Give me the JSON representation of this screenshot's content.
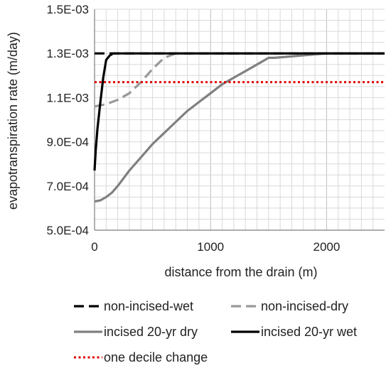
{
  "chart_data": {
    "type": "line",
    "title": "",
    "xlabel": "distance from the drain (m)",
    "ylabel": "evapotranspiration rate (m/day)",
    "xlim": [
      0,
      2500
    ],
    "ylim": [
      0.0005,
      0.0015
    ],
    "x_ticks": [
      0,
      1000,
      2000
    ],
    "x_tick_labels": [
      "0",
      "1000",
      "2000"
    ],
    "y_ticks": [
      0.0005,
      0.0007,
      0.0009,
      0.0011,
      0.0013,
      0.0015
    ],
    "y_tick_labels": [
      "5.0E-04",
      "7.0E-04",
      "9.0E-04",
      "1.1E-03",
      "1.3E-03",
      "1.5E-03"
    ],
    "grid": true,
    "legend_position": "bottom",
    "series": [
      {
        "name": "non-incised-wet",
        "color": "#000000",
        "style": "dashed",
        "x": [
          0,
          2500
        ],
        "y": [
          0.0013,
          0.0013
        ]
      },
      {
        "name": "non-incised-dry",
        "color": "#999999",
        "style": "dashed",
        "x": [
          0,
          100,
          200,
          300,
          400,
          500,
          600,
          700,
          800,
          1000,
          1500,
          2000,
          2500
        ],
        "y": [
          0.00106,
          0.00107,
          0.00109,
          0.00112,
          0.00117,
          0.00123,
          0.00128,
          0.0013,
          0.0013,
          0.0013,
          0.0013,
          0.0013,
          0.0013
        ]
      },
      {
        "name": "incised 20-yr dry",
        "color": "#808080",
        "style": "solid",
        "x": [
          0,
          50,
          100,
          150,
          200,
          300,
          400,
          500,
          600,
          700,
          800,
          900,
          1000,
          1100,
          1200,
          1300,
          1400,
          1500,
          1550,
          2000,
          2500
        ],
        "y": [
          0.00063,
          0.000635,
          0.00065,
          0.00067,
          0.0007,
          0.00077,
          0.00083,
          0.00089,
          0.00094,
          0.00099,
          0.00104,
          0.00108,
          0.00112,
          0.00116,
          0.00119,
          0.00122,
          0.00125,
          0.00128,
          0.00128,
          0.0013,
          0.0013
        ]
      },
      {
        "name": "incised 20-yr wet",
        "color": "#000000",
        "style": "solid",
        "x": [
          0,
          10,
          25,
          50,
          75,
          100,
          130,
          160,
          200,
          2500
        ],
        "y": [
          0.00077,
          0.00086,
          0.00096,
          0.00108,
          0.00119,
          0.00127,
          0.00129,
          0.0013,
          0.0013,
          0.0013
        ]
      },
      {
        "name": "one decile change",
        "color": "#e00000",
        "style": "dotted",
        "x": [
          0,
          2500
        ],
        "y": [
          0.00117,
          0.00117
        ]
      }
    ]
  }
}
